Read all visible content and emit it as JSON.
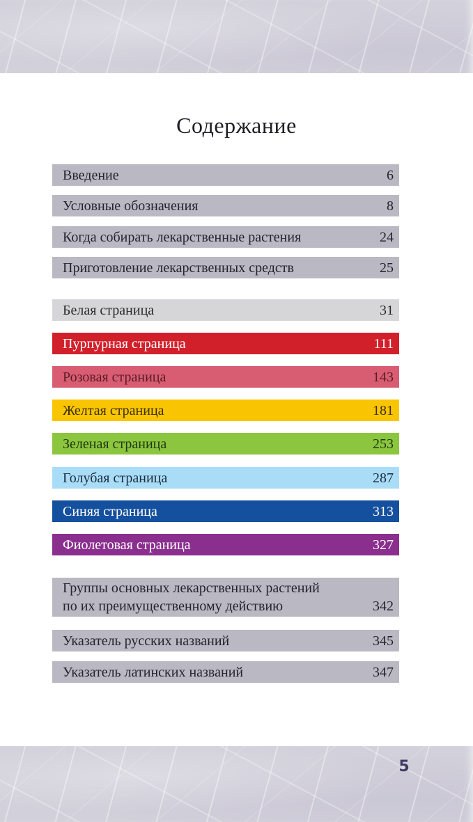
{
  "page": {
    "title": "Содержание",
    "footer_page_number": "5"
  },
  "toc": {
    "items": [
      {
        "label": "Введение",
        "page": "6",
        "bg": "#bab8c2",
        "fg": "#25232e"
      },
      {
        "label": "Условные обозначения",
        "page": "8",
        "bg": "#bab8c2",
        "fg": "#25232e"
      },
      {
        "label": "Когда собирать лекарственные растения",
        "page": "24",
        "bg": "#bab8c2",
        "fg": "#25232e"
      },
      {
        "label": "Приготовление лекарственных средств",
        "page": "25",
        "bg": "#bab8c2",
        "fg": "#25232e"
      },
      {
        "label": "Белая страница",
        "page": "31",
        "bg": "#d6d5d8",
        "fg": "#2a2a2e"
      },
      {
        "label": "Пурпурная страница",
        "page": "111",
        "bg": "#d2202b",
        "fg": "#ffffff"
      },
      {
        "label": "Розовая страница",
        "page": "143",
        "bg": "#d95d72",
        "fg": "#571c28"
      },
      {
        "label": "Желтая страница",
        "page": "181",
        "bg": "#f9c502",
        "fg": "#3d2f07"
      },
      {
        "label": "Зеленая страница",
        "page": "253",
        "bg": "#8cc63e",
        "fg": "#203911"
      },
      {
        "label": "Голубая страница",
        "page": "287",
        "bg": "#a9ddf7",
        "fg": "#1d2b3f"
      },
      {
        "label": "Синяя страница",
        "page": "313",
        "bg": "#15509e",
        "fg": "#ffffff"
      },
      {
        "label": "Фиолетовая страница",
        "page": "327",
        "bg": "#8b2f8f",
        "fg": "#ffffff"
      },
      {
        "label": "Группы основных лекарственных растений\nпо их преимущественному действию",
        "page": "342",
        "bg": "#bab8c2",
        "fg": "#25232e"
      },
      {
        "label": "Указатель русских названий",
        "page": "345",
        "bg": "#bab8c2",
        "fg": "#25232e"
      },
      {
        "label": "Указатель латинских названий",
        "page": "347",
        "bg": "#bab8c2",
        "fg": "#25232e"
      }
    ]
  },
  "colors": {
    "texture_band": "#d2d0da",
    "content_background": "#ffffff",
    "title_ink": "#1f1e26",
    "footer_ink": "#3e3b62"
  }
}
